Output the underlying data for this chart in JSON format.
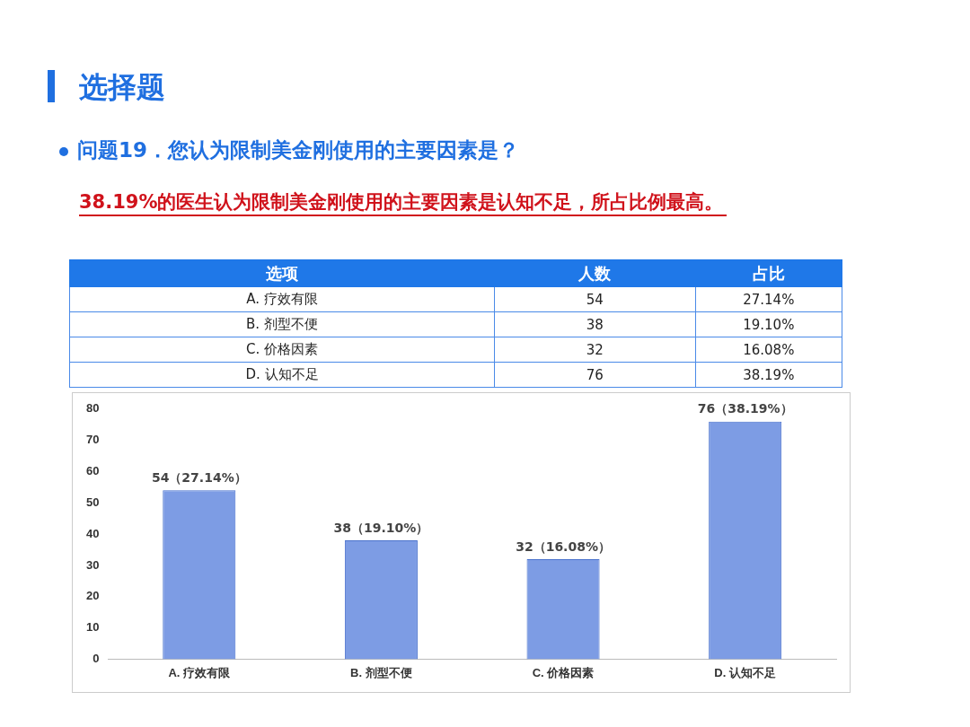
{
  "chart_data": {
    "type": "bar",
    "title": "选择题",
    "subtitle": "问题19．您认为限制美金刚使用的主要因素是？",
    "annotations": [
      "38.19%的医生认为限制美金刚使用的主要因素是认知不足，所占比例最高。",
      "选项",
      "人数",
      "占比",
      "27.14%",
      "19.10%",
      "16.08%",
      "38.19%",
      "54",
      "38",
      "32",
      "76"
    ],
    "categories": [
      "A. 疗效有限",
      "B. 剂型不便",
      "C. 价格因素",
      "D. 认知不足"
    ],
    "values": [
      54,
      38,
      32,
      76
    ],
    "value_labels": [
      "54（27.14%）",
      "38（19.10%）",
      "32（16.08%）",
      "76（38.19%）"
    ],
    "color": "#7d9ce4",
    "ylim": [
      0,
      80
    ],
    "yticks": [
      0,
      10,
      20,
      30,
      40,
      50,
      60,
      70,
      80
    ],
    "grid": false,
    "legend": false
  }
}
